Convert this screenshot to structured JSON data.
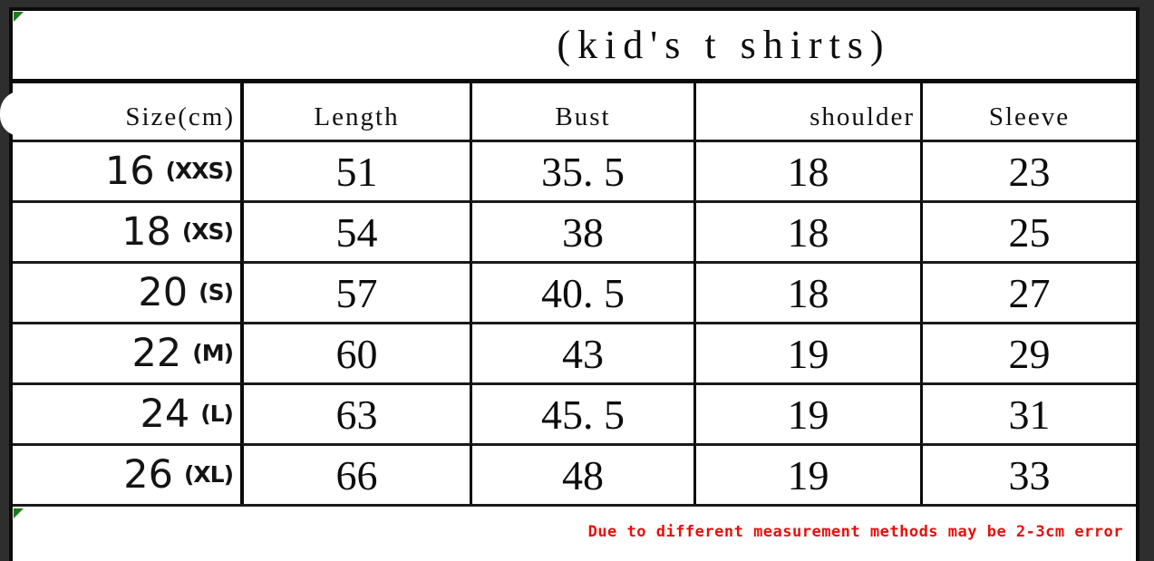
{
  "table": {
    "title": "(kid's t shirts)",
    "columns": [
      "Size(cm)",
      "Length",
      "Bust",
      "shoulder",
      "Sleeve"
    ],
    "rows": [
      {
        "size": "16",
        "code": "(XXS)",
        "length": "51",
        "bust": "35. 5",
        "shoulder": "18",
        "sleeve": "23"
      },
      {
        "size": "18",
        "code": "(XS)",
        "length": "54",
        "bust": "38",
        "shoulder": "18",
        "sleeve": "25"
      },
      {
        "size": "20",
        "code": "(S)",
        "length": "57",
        "bust": "40. 5",
        "shoulder": "18",
        "sleeve": "27"
      },
      {
        "size": "22",
        "code": "(M)",
        "length": "60",
        "bust": "43",
        "shoulder": "19",
        "sleeve": "29"
      },
      {
        "size": "24",
        "code": "(L)",
        "length": "63",
        "bust": "45. 5",
        "shoulder": "19",
        "sleeve": "31"
      },
      {
        "size": "26",
        "code": "(XL)",
        "length": "66",
        "bust": "48",
        "shoulder": "19",
        "sleeve": "33"
      }
    ],
    "note": "Due to different measurement methods may be 2-3cm error"
  },
  "colors": {
    "note_red": "#e8100c",
    "marker_green": "#1c7a1c",
    "background": "#2e2e2e",
    "border_black": "#0b0b0b"
  }
}
